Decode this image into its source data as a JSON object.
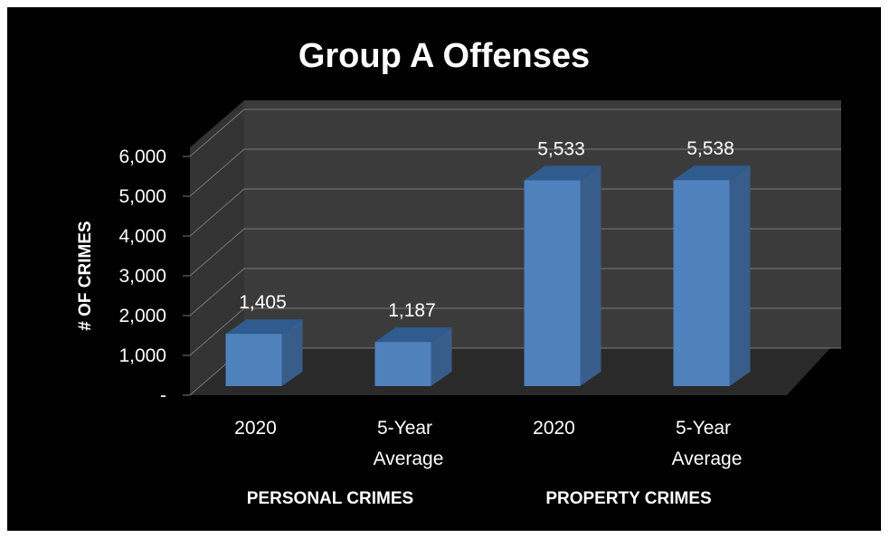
{
  "chart_data": {
    "type": "bar",
    "title": "Group A Offenses",
    "ylabel": "# OF CRIMES",
    "xlabel": "",
    "ylim": [
      0,
      6000
    ],
    "y_ticks": [
      "-",
      "1,000",
      "2,000",
      "3,000",
      "4,000",
      "5,000",
      "6,000"
    ],
    "y_tick_values": [
      0,
      1000,
      2000,
      3000,
      4000,
      5000,
      6000
    ],
    "categories": [
      {
        "lines": [
          "2020"
        ],
        "group": "PERSONAL CRIMES"
      },
      {
        "lines": [
          "5-Year",
          "Average"
        ],
        "group": "PERSONAL CRIMES"
      },
      {
        "lines": [
          "2020"
        ],
        "group": "PROPERTY CRIMES"
      },
      {
        "lines": [
          "5-Year",
          "Average"
        ],
        "group": "PROPERTY CRIMES"
      }
    ],
    "groups": [
      "PERSONAL CRIMES",
      "PROPERTY CRIMES"
    ],
    "values": [
      1405,
      1187,
      5533,
      5538
    ],
    "data_labels": [
      "1,405",
      "1,187",
      "5,533",
      "5,538"
    ],
    "grid": true,
    "style": "3d-column",
    "colors": {
      "background": "#000000",
      "bar_front": "#4f81bd",
      "bar_side": "#385d8a",
      "bar_top": "#2f5b8e",
      "wall": "#3b3b3b",
      "floor": "#2a2a2a",
      "gridline": "#7a7a7a",
      "text": "#ffffff"
    }
  }
}
